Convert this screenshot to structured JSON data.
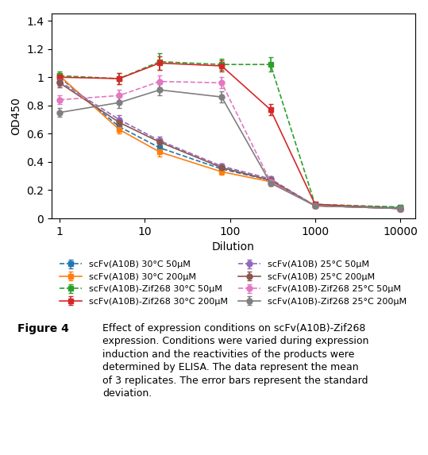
{
  "chart_data": {
    "type": "line",
    "x_label": "Dilution",
    "y_label": "OD450",
    "annotations": [
      "Figure 4",
      "Effect of expression conditions on scFv(A10B)-Zif268\nexpression. Conditions were varied during expression\ninduction and the reactivities of the products were\ndetermined by ELISA. The data represent the mean\nof 3 replicates. The error bars represent the standard\ndeviation."
    ],
    "x": [
      1,
      5,
      15,
      80,
      300,
      1000,
      10000
    ],
    "log": "x",
    "xlim": [
      0.8,
      15000
    ],
    "xticks": [
      1,
      10,
      100,
      1000,
      10000
    ],
    "ylim": [
      0,
      1.45
    ],
    "yticks": [
      0,
      0.2,
      0.4,
      0.6,
      0.8,
      1,
      1.2,
      1.4
    ],
    "legend": "upper center",
    "series": [
      {
        "name": "scFv(A10B) 30°C 50μM",
        "marker": "square",
        "line_style": "dashed",
        "values": [
          1.0,
          0.65,
          0.5,
          0.35,
          0.27,
          0.09,
          0.08
        ],
        "errors": [
          0.02,
          0.03,
          0.03,
          0.02,
          0.02,
          0.01,
          0.01
        ]
      },
      {
        "name": "scFv(A10B) 30°C 200μM",
        "marker": "square",
        "line_style": "solid",
        "values": [
          1.01,
          0.63,
          0.47,
          0.33,
          0.26,
          0.09,
          0.07
        ],
        "errors": [
          0.02,
          0.03,
          0.03,
          0.02,
          0.02,
          0.01,
          0.01
        ]
      },
      {
        "name": "scFv(A10B)-Zif268 30°C 50μM",
        "marker": "square",
        "line_style": "dashed",
        "values": [
          1.01,
          0.99,
          1.11,
          1.09,
          1.09,
          0.1,
          0.08
        ],
        "errors": [
          0.03,
          0.04,
          0.06,
          0.04,
          0.05,
          0.01,
          0.01
        ]
      },
      {
        "name": "scFv(A10B)-Zif268 30°C 200μM",
        "marker": "square",
        "line_style": "solid",
        "values": [
          1.0,
          0.99,
          1.1,
          1.08,
          0.77,
          0.1,
          0.07
        ],
        "errors": [
          0.02,
          0.04,
          0.05,
          0.04,
          0.04,
          0.01,
          0.01
        ]
      },
      {
        "name": "scFv(A10B) 25°C 50μM",
        "marker": "circle",
        "line_style": "dashed",
        "values": [
          0.97,
          0.7,
          0.55,
          0.37,
          0.28,
          0.09,
          0.07
        ],
        "errors": [
          0.03,
          0.03,
          0.03,
          0.02,
          0.02,
          0.01,
          0.01
        ]
      },
      {
        "name": "scFv(A10B) 25°C 200μM",
        "marker": "circle",
        "line_style": "solid",
        "values": [
          0.96,
          0.68,
          0.54,
          0.36,
          0.27,
          0.09,
          0.07
        ],
        "errors": [
          0.03,
          0.03,
          0.03,
          0.02,
          0.02,
          0.01,
          0.01
        ]
      },
      {
        "name": "scFv(A10B)-Zif268 25°C 50μM",
        "marker": "circle",
        "line_style": "dashed",
        "values": [
          0.84,
          0.87,
          0.97,
          0.96,
          0.26,
          0.09,
          0.07
        ],
        "errors": [
          0.03,
          0.04,
          0.04,
          0.04,
          0.03,
          0.01,
          0.01
        ]
      },
      {
        "name": "scFv(A10B)-Zif268 25°C 200μM",
        "marker": "circle",
        "line_style": "solid",
        "values": [
          0.75,
          0.82,
          0.91,
          0.86,
          0.25,
          0.09,
          0.07
        ],
        "errors": [
          0.03,
          0.04,
          0.04,
          0.04,
          0.02,
          0.01,
          0.01
        ]
      }
    ]
  }
}
